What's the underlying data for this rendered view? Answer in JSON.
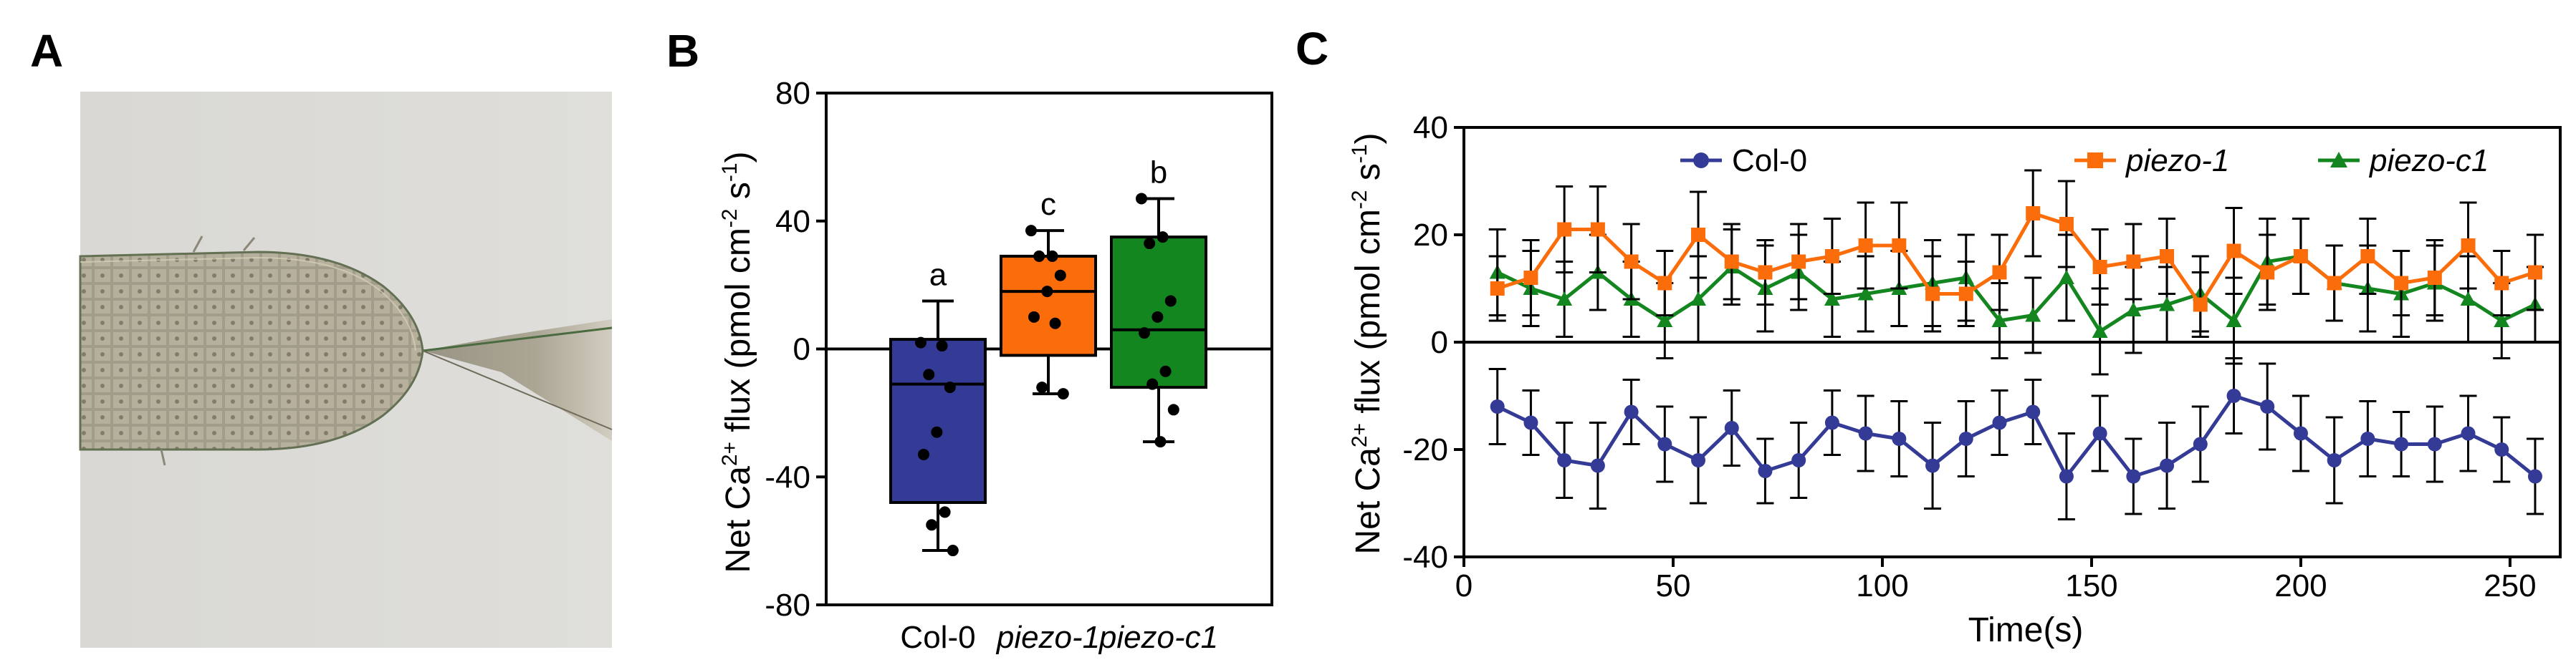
{
  "panels": {
    "a": "A",
    "b": "B",
    "c": "C"
  },
  "photo": {
    "description_icon": "micropipette-root-tip-photo"
  },
  "colors": {
    "col0": "#343b96",
    "piezo1": "#fb6d0b",
    "piezoc1": "#13861f",
    "axis": "#000000"
  },
  "chart_data": [
    {
      "id": "B",
      "type": "box",
      "ylabel_parts": [
        "Net Ca",
        "2+",
        " flux (pmol cm",
        "-2",
        " s",
        "-1",
        ")"
      ],
      "ylim": [
        -80,
        80
      ],
      "yticks": [
        -80,
        -40,
        0,
        40,
        80
      ],
      "categories": [
        "Col-0",
        "piezo-1",
        "piezo-c1"
      ],
      "italic": [
        false,
        true,
        true
      ],
      "boxes": [
        {
          "name": "Col-0",
          "whisker_low": -63,
          "q1": -48,
          "median": -11,
          "q3": 3,
          "whisker_high": 15,
          "points": [
            2,
            1,
            -8,
            -12,
            -26,
            -33,
            -51,
            -55,
            -63
          ],
          "letter": "a"
        },
        {
          "name": "piezo-1",
          "whisker_low": -14,
          "q1": -2,
          "median": 18,
          "q3": 29,
          "whisker_high": 37,
          "points": [
            37,
            29,
            29,
            23,
            18,
            10,
            8,
            -12,
            -14
          ],
          "letter": "c"
        },
        {
          "name": "piezo-c1",
          "whisker_low": -29,
          "q1": -12,
          "median": 6,
          "q3": 35,
          "whisker_high": 47,
          "points": [
            47,
            35,
            33,
            15,
            10,
            5,
            -7,
            -11,
            -19,
            -29
          ],
          "letter": "b"
        }
      ]
    },
    {
      "id": "C",
      "type": "line",
      "xlabel": "Time(s)",
      "ylabel_parts": [
        "Net Ca",
        "2+",
        " flux (pmol cm",
        "-2",
        " s",
        "-1",
        ")"
      ],
      "xlim": [
        0,
        262
      ],
      "ylim": [
        -40,
        40
      ],
      "xticks": [
        0,
        50,
        100,
        150,
        200,
        250
      ],
      "yticks": [
        -40,
        -20,
        0,
        20,
        40
      ],
      "x": [
        8,
        16,
        24,
        32,
        40,
        48,
        56,
        64,
        72,
        80,
        88,
        96,
        104,
        112,
        120,
        128,
        136,
        144,
        152,
        160,
        168,
        176,
        184,
        192,
        200,
        208,
        216,
        224,
        232,
        240,
        248,
        256
      ],
      "series": [
        {
          "name": "Col-0",
          "italic": false,
          "marker": "circle",
          "values": [
            -12,
            -15,
            -22,
            -23,
            -13,
            -19,
            -22,
            -16,
            -24,
            -22,
            -15,
            -17,
            -18,
            -23,
            -18,
            -15,
            -13,
            -25,
            -17,
            -25,
            -23,
            -19,
            -10,
            -12,
            -17,
            -22,
            -18,
            -19,
            -19,
            -17,
            -20,
            -25
          ],
          "err": [
            7,
            6,
            7,
            8,
            6,
            7,
            8,
            7,
            6,
            7,
            6,
            7,
            7,
            8,
            7,
            6,
            6,
            8,
            7,
            7,
            8,
            7,
            7,
            8,
            7,
            8,
            7,
            6,
            7,
            7,
            6,
            7
          ]
        },
        {
          "name": "piezo-1",
          "italic": true,
          "marker": "square",
          "values": [
            10,
            12,
            21,
            21,
            15,
            11,
            20,
            15,
            13,
            15,
            16,
            18,
            18,
            9,
            9,
            13,
            24,
            22,
            14,
            15,
            16,
            7,
            17,
            13,
            16,
            11,
            16,
            11,
            12,
            18,
            11,
            13
          ],
          "err": [
            6,
            7,
            8,
            8,
            7,
            6,
            8,
            7,
            6,
            7,
            7,
            8,
            8,
            7,
            6,
            7,
            8,
            8,
            7,
            7,
            7,
            6,
            8,
            7,
            7,
            7,
            7,
            6,
            7,
            8,
            6,
            7
          ]
        },
        {
          "name": "piezo-c1",
          "italic": true,
          "marker": "triangle",
          "values": [
            13,
            10,
            8,
            13,
            8,
            4,
            8,
            14,
            10,
            13,
            8,
            9,
            10,
            11,
            12,
            4,
            5,
            12,
            2,
            6,
            7,
            9,
            4,
            15,
            16,
            11,
            10,
            9,
            11,
            8,
            4,
            7
          ],
          "err": [
            8,
            7,
            7,
            7,
            7,
            7,
            8,
            7,
            8,
            7,
            7,
            7,
            7,
            8,
            8,
            7,
            7,
            8,
            8,
            8,
            7,
            7,
            8,
            8,
            7,
            7,
            8,
            8,
            7,
            8,
            7,
            7
          ]
        }
      ],
      "legend": {
        "placement": "top",
        "entries": [
          "Col-0",
          "piezo-1",
          "piezo-c1"
        ]
      }
    }
  ]
}
